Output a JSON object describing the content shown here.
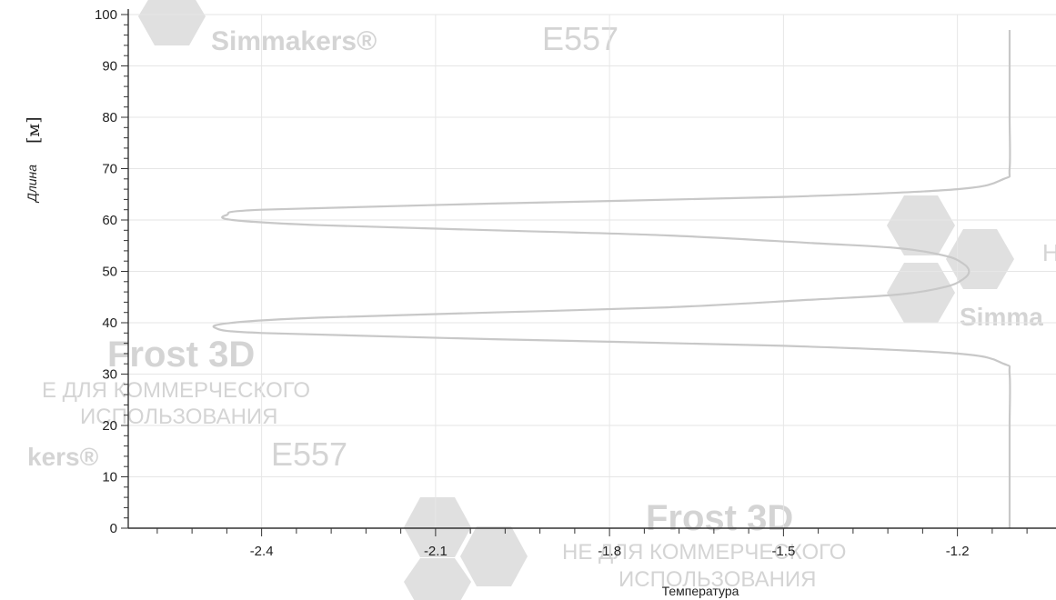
{
  "chart_data": {
    "type": "line",
    "title": "",
    "xlabel": "Температура",
    "ylabel": "Длина",
    "ylabel_unit": "[м]",
    "xlim": [
      -2.63,
      -1.03
    ],
    "ylim": [
      0,
      100
    ],
    "x_ticks": [
      -2.4,
      -2.1,
      -1.8,
      -1.5,
      -1.2
    ],
    "x_tick_labels": [
      "-2.4",
      "-2.1",
      "-1.8",
      "-1.5",
      "-1.2"
    ],
    "y_ticks": [
      0,
      10,
      20,
      30,
      40,
      50,
      60,
      70,
      80,
      90,
      100
    ],
    "y_tick_labels": [
      "0",
      "10",
      "20",
      "30",
      "40",
      "50",
      "60",
      "70",
      "80",
      "90",
      "100"
    ],
    "grid": true,
    "legend": "none",
    "series": [
      {
        "color": "#c8c8c8",
        "points": [
          [
            -1.11,
            0
          ],
          [
            -1.11,
            10
          ],
          [
            -1.11,
            20
          ],
          [
            -1.11,
            30
          ],
          [
            -1.12,
            32
          ],
          [
            -1.2,
            34
          ],
          [
            -1.5,
            35.5
          ],
          [
            -2.0,
            36.8
          ],
          [
            -2.4,
            38
          ],
          [
            -2.48,
            39
          ],
          [
            -2.45,
            40
          ],
          [
            -2.3,
            41
          ],
          [
            -2.0,
            42
          ],
          [
            -1.7,
            43
          ],
          [
            -1.45,
            44.5
          ],
          [
            -1.3,
            45.5
          ],
          [
            -1.22,
            47
          ],
          [
            -1.19,
            48.5
          ],
          [
            -1.18,
            50
          ],
          [
            -1.19,
            51.5
          ],
          [
            -1.22,
            53
          ],
          [
            -1.3,
            54.5
          ],
          [
            -1.45,
            55.5
          ],
          [
            -1.7,
            57
          ],
          [
            -2.0,
            58
          ],
          [
            -2.3,
            59
          ],
          [
            -2.45,
            60
          ],
          [
            -2.46,
            61
          ],
          [
            -2.4,
            62
          ],
          [
            -2.0,
            63.2
          ],
          [
            -1.5,
            64.5
          ],
          [
            -1.2,
            66
          ],
          [
            -1.12,
            68
          ],
          [
            -1.11,
            70
          ],
          [
            -1.11,
            80
          ],
          [
            -1.11,
            90
          ],
          [
            -1.11,
            97
          ]
        ]
      }
    ]
  },
  "watermarks": {
    "brand_simmakers": "Simmakers®",
    "brand_simmakers_short": "Simma",
    "brand_simmakers_cut": "kers®",
    "code": "E557",
    "product": "Frost 3D",
    "notice_line1": "НЕ ДЛЯ КОММЕРЧЕСКОГО",
    "notice_line1_cut": "Е ДЛЯ КОММЕРЧЕСКОГО",
    "notice_line2": "ИСПОЛЬЗОВАНИЯ",
    "letter": "Н",
    "color": "#d4d4d4",
    "hex_color": "#e0e0e0"
  }
}
